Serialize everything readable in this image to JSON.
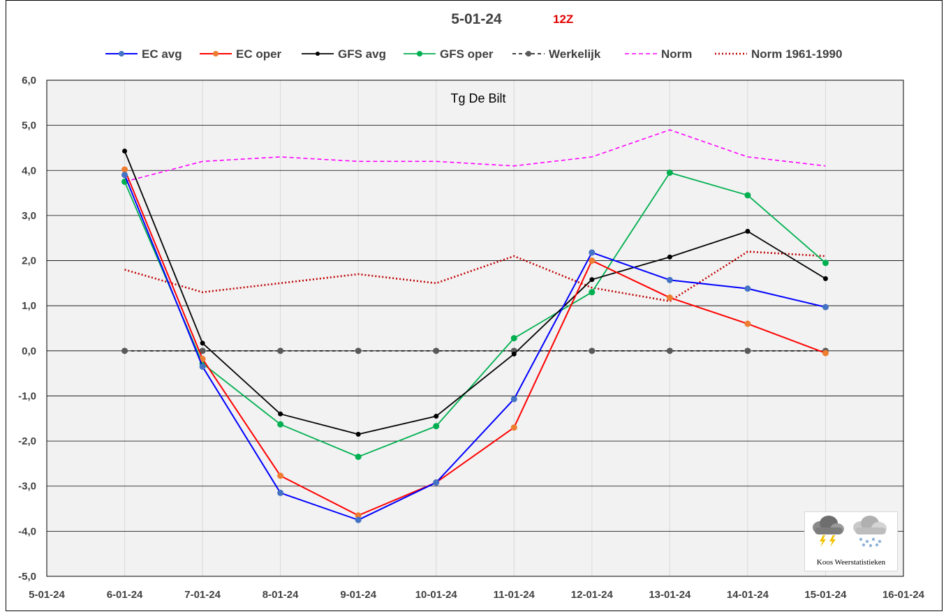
{
  "header": {
    "date": "5-01-24",
    "run": "12Z"
  },
  "colors": {
    "ec_avg": "#0000ff",
    "ec_avg_marker": "#4472c4",
    "ec_oper": "#ff0000",
    "ec_oper_marker": "#ed7d31",
    "gfs_avg": "#000000",
    "gfs_oper": "#00b050",
    "werkelijk": "#000000",
    "werkelijk_marker": "#595959",
    "norm": "#ff00ff",
    "norm_1961_1990": "#c00000",
    "plot_background": "#f2f2f2",
    "run_label": "#e00000"
  },
  "chart_data": {
    "type": "line",
    "title": "Tg De Bilt",
    "xlabel": "",
    "ylabel": "",
    "categories": [
      "5-01-24",
      "6-01-24",
      "7-01-24",
      "8-01-24",
      "9-01-24",
      "10-01-24",
      "11-01-24",
      "12-01-24",
      "13-01-24",
      "14-01-24",
      "15-01-24",
      "16-01-24"
    ],
    "ylim": [
      -5,
      6
    ],
    "yticks": [
      "-5,0",
      "-4,0",
      "-3,0",
      "-2,0",
      "-1,0",
      "0,0",
      "1,0",
      "2,0",
      "3,0",
      "4,0",
      "5,0",
      "6,0"
    ],
    "grid": true,
    "legend_position": "top",
    "series": [
      {
        "name": "EC avg",
        "style": "solid-marker",
        "values": [
          null,
          3.9,
          -0.35,
          -3.15,
          -3.75,
          -2.92,
          -1.07,
          2.18,
          1.57,
          1.38,
          0.97,
          null
        ]
      },
      {
        "name": "EC oper",
        "style": "solid-marker",
        "values": [
          null,
          4.02,
          -0.18,
          -2.77,
          -3.65,
          -2.92,
          -1.7,
          2.0,
          1.18,
          0.6,
          -0.05,
          null
        ]
      },
      {
        "name": "GFS avg",
        "style": "solid-marker",
        "values": [
          null,
          4.43,
          0.17,
          -1.4,
          -1.85,
          -1.45,
          -0.07,
          1.58,
          2.08,
          2.65,
          1.6,
          null
        ]
      },
      {
        "name": "GFS oper",
        "style": "solid-marker",
        "values": [
          null,
          3.75,
          -0.28,
          -1.63,
          -2.35,
          -1.67,
          0.28,
          1.3,
          3.95,
          3.45,
          1.95,
          null
        ]
      },
      {
        "name": "Werkelijk",
        "style": "dashed-marker",
        "values": [
          null,
          0.0,
          0.0,
          0.0,
          0.0,
          0.0,
          0.0,
          0.0,
          0.0,
          0.0,
          0.0,
          null
        ]
      },
      {
        "name": "Norm",
        "style": "dashed",
        "values": [
          null,
          3.75,
          4.2,
          4.3,
          4.2,
          4.2,
          4.1,
          4.3,
          4.9,
          4.3,
          4.1,
          null
        ]
      },
      {
        "name": "Norm 1961-1990",
        "style": "dotted",
        "values": [
          null,
          1.8,
          1.3,
          1.5,
          1.7,
          1.5,
          2.1,
          1.4,
          1.1,
          2.2,
          2.1,
          null
        ]
      }
    ]
  },
  "logo": {
    "label": "Koos Weerstatistieken",
    "icons": [
      "thunderstorm-cloud-icon",
      "snow-cloud-icon"
    ]
  }
}
